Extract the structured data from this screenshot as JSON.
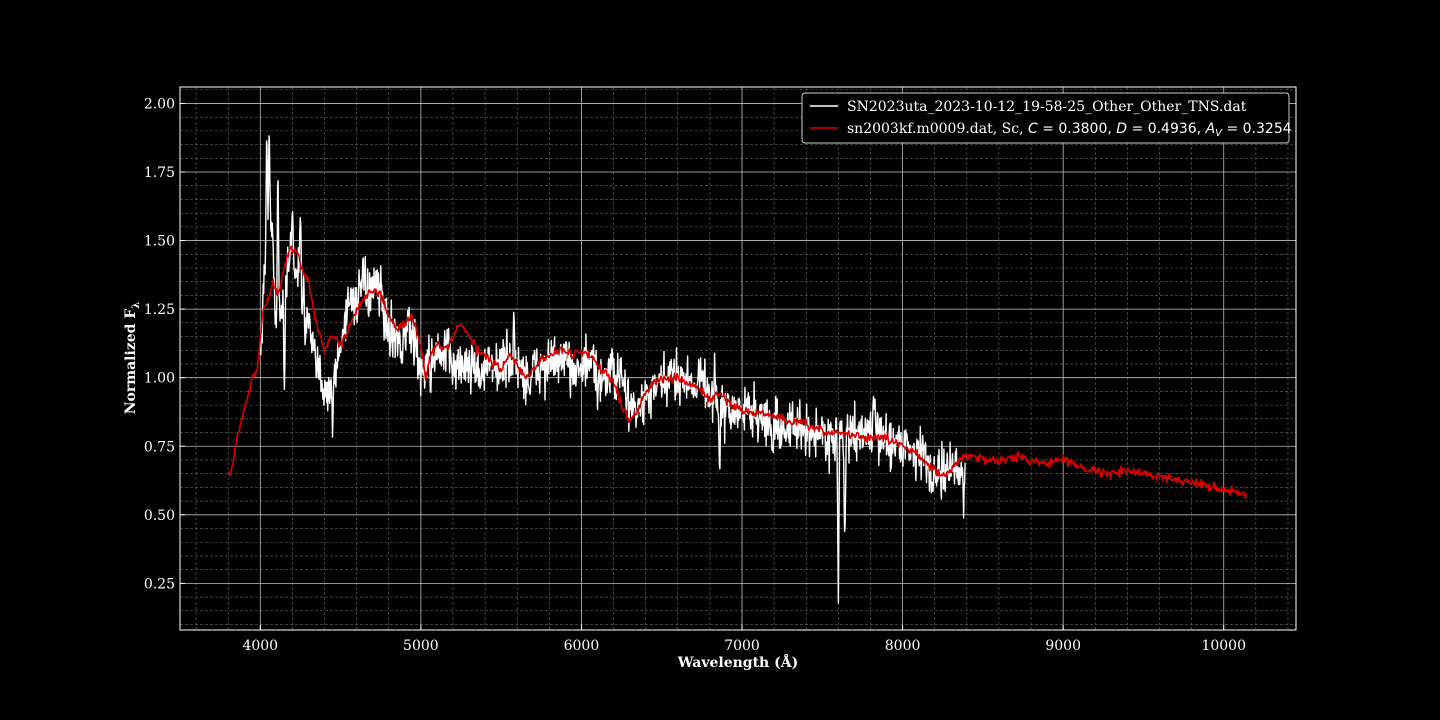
{
  "chart_data": {
    "type": "line",
    "title": "",
    "xlabel": "Wavelength (Å)",
    "ylabel": "Normalized F",
    "ylabel_sub": "λ",
    "xlim": [
      3500,
      10450
    ],
    "ylim": [
      0.08,
      2.06
    ],
    "xticks": [
      4000,
      5000,
      6000,
      7000,
      8000,
      9000,
      10000
    ],
    "yticks": [
      0.25,
      0.5,
      0.75,
      1.0,
      1.25,
      1.5,
      1.75,
      2.0
    ],
    "xtick_labels": [
      "4000",
      "5000",
      "6000",
      "7000",
      "8000",
      "9000",
      "10000"
    ],
    "ytick_labels": [
      "0.25",
      "0.50",
      "0.75",
      "1.00",
      "1.25",
      "1.50",
      "1.75",
      "2.00"
    ],
    "grid": true,
    "minor_grid": true,
    "legend_position": "top-right",
    "background": "#000000",
    "series": [
      {
        "name": "SN2023uta_2023-10-12_19-58-25_Other_Other_TNS.dat",
        "color": "#ffffff",
        "noise": 0.045,
        "spikes": [
          [
            4040,
            1.97
          ],
          [
            4055,
            1.95
          ],
          [
            4110,
            1.8
          ],
          [
            4150,
            0.94
          ],
          [
            4200,
            1.62
          ],
          [
            4250,
            1.66
          ],
          [
            4280,
            1.1
          ],
          [
            4450,
            0.79
          ],
          [
            4520,
            1.15
          ],
          [
            4640,
            1.44
          ],
          [
            4750,
            1.38
          ],
          [
            5060,
            0.94
          ],
          [
            5370,
            0.93
          ],
          [
            5580,
            1.25
          ],
          [
            5680,
            0.94
          ],
          [
            5990,
            0.99
          ],
          [
            6100,
            0.9
          ],
          [
            6860,
            0.65
          ],
          [
            6830,
            1.07
          ],
          [
            7190,
            0.7
          ],
          [
            7600,
            0.17
          ],
          [
            7640,
            0.37
          ],
          [
            7820,
            0.92
          ],
          [
            8180,
            0.57
          ],
          [
            8380,
            0.55
          ],
          [
            8400,
            0.86
          ]
        ],
        "x": [
          4000,
          4030,
          4060,
          4080,
          4100,
          4130,
          4160,
          4190,
          4230,
          4270,
          4300,
          4340,
          4380,
          4420,
          4450,
          4480,
          4520,
          4560,
          4600,
          4640,
          4680,
          4720,
          4760,
          4800,
          4840,
          4880,
          4920,
          4960,
          5000,
          5040,
          5080,
          5120,
          5160,
          5200,
          5240,
          5300,
          5360,
          5420,
          5480,
          5540,
          5600,
          5660,
          5720,
          5780,
          5840,
          5900,
          5960,
          6020,
          6080,
          6140,
          6200,
          6260,
          6300,
          6350,
          6400,
          6450,
          6500,
          6560,
          6620,
          6680,
          6740,
          6800,
          6860,
          6920,
          6980,
          7040,
          7100,
          7160,
          7220,
          7280,
          7340,
          7400,
          7460,
          7520,
          7580,
          7640,
          7700,
          7760,
          7820,
          7880,
          7940,
          8000,
          8060,
          8120,
          8180,
          8240,
          8300,
          8340,
          8390
        ],
        "y": [
          1.1,
          1.4,
          1.6,
          1.45,
          1.2,
          1.25,
          1.35,
          1.45,
          1.4,
          1.3,
          1.2,
          1.05,
          1.0,
          0.95,
          0.98,
          1.05,
          1.2,
          1.3,
          1.28,
          1.32,
          1.3,
          1.33,
          1.28,
          1.15,
          1.18,
          1.1,
          1.2,
          1.12,
          1.02,
          1.05,
          1.08,
          1.07,
          1.1,
          1.05,
          1.04,
          1.05,
          1.05,
          1.03,
          1.05,
          1.06,
          1.04,
          1.0,
          1.03,
          1.05,
          1.06,
          1.05,
          1.04,
          1.05,
          1.04,
          1.0,
          1.02,
          0.98,
          0.9,
          0.88,
          0.92,
          0.95,
          0.97,
          1.0,
          1.01,
          0.98,
          1.0,
          0.95,
          0.87,
          0.88,
          0.87,
          0.89,
          0.86,
          0.84,
          0.82,
          0.82,
          0.81,
          0.8,
          0.8,
          0.79,
          0.78,
          0.78,
          0.8,
          0.79,
          0.82,
          0.78,
          0.77,
          0.76,
          0.74,
          0.72,
          0.68,
          0.66,
          0.66,
          0.65,
          0.68
        ]
      },
      {
        "name": "sn2003kf.m0009.dat, Sc, C = 0.3800, D = 0.4936, A_V = 0.3254",
        "color": "#d60000",
        "noise": 0.008,
        "x": [
          3800,
          3820,
          3860,
          3900,
          3950,
          3980,
          4000,
          4020,
          4050,
          4080,
          4110,
          4140,
          4170,
          4200,
          4230,
          4260,
          4300,
          4350,
          4400,
          4450,
          4500,
          4550,
          4600,
          4650,
          4700,
          4750,
          4800,
          4850,
          4900,
          4950,
          5000,
          5030,
          5060,
          5100,
          5150,
          5200,
          5250,
          5300,
          5350,
          5400,
          5450,
          5500,
          5550,
          5600,
          5650,
          5700,
          5750,
          5800,
          5850,
          5900,
          5950,
          6000,
          6050,
          6100,
          6150,
          6200,
          6250,
          6300,
          6350,
          6400,
          6450,
          6500,
          6550,
          6600,
          6650,
          6700,
          6750,
          6800,
          6850,
          6900,
          6950,
          7000,
          7100,
          7200,
          7300,
          7400,
          7500,
          7600,
          7700,
          7800,
          7900,
          8000,
          8100,
          8200,
          8250,
          8300,
          8350,
          8400,
          8450,
          8500,
          8600,
          8700,
          8800,
          8900,
          9000,
          9100,
          9200,
          9300,
          9400,
          9500,
          9600,
          9700,
          9800,
          9900,
          10000,
          10100,
          10140
        ],
        "y": [
          0.64,
          0.66,
          0.8,
          0.88,
          1.0,
          1.02,
          1.15,
          1.25,
          1.28,
          1.35,
          1.3,
          1.38,
          1.45,
          1.47,
          1.45,
          1.4,
          1.35,
          1.2,
          1.1,
          1.15,
          1.12,
          1.18,
          1.25,
          1.3,
          1.32,
          1.3,
          1.22,
          1.18,
          1.2,
          1.22,
          1.12,
          1.0,
          1.08,
          1.12,
          1.1,
          1.15,
          1.2,
          1.15,
          1.1,
          1.08,
          1.05,
          1.03,
          1.08,
          1.05,
          1.0,
          1.02,
          1.07,
          1.08,
          1.1,
          1.1,
          1.08,
          1.1,
          1.08,
          1.05,
          1.02,
          0.98,
          0.9,
          0.85,
          0.88,
          0.95,
          0.98,
          1.0,
          0.99,
          1.0,
          0.98,
          0.97,
          0.95,
          0.92,
          0.94,
          0.92,
          0.9,
          0.88,
          0.87,
          0.86,
          0.84,
          0.83,
          0.8,
          0.8,
          0.79,
          0.78,
          0.78,
          0.75,
          0.72,
          0.66,
          0.64,
          0.66,
          0.7,
          0.72,
          0.71,
          0.7,
          0.7,
          0.71,
          0.7,
          0.69,
          0.7,
          0.68,
          0.66,
          0.65,
          0.66,
          0.65,
          0.64,
          0.63,
          0.62,
          0.61,
          0.59,
          0.58,
          0.575
        ]
      }
    ],
    "legend": {
      "entry1": "SN2023uta_2023-10-12_19-58-25_Other_Other_TNS.dat",
      "entry2_prefix": "sn2003kf.m0009.dat, Sc, ",
      "C_symbol": "C",
      "C_value": " = 0.3800, ",
      "D_symbol": "D",
      "D_value": " = 0.4936, ",
      "AV_symbol": "A",
      "AV_sub": "V",
      "AV_value": " = 0.3254"
    }
  }
}
